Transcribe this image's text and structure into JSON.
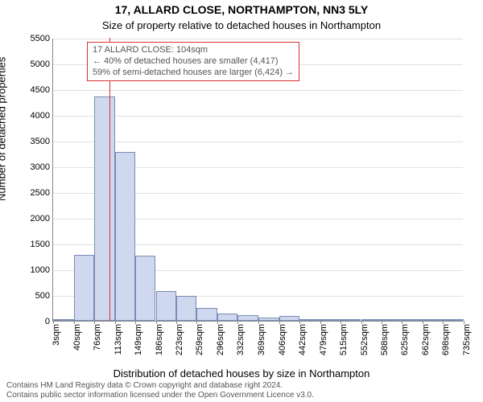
{
  "title": "17, ALLARD CLOSE, NORTHAMPTON, NN3 5LY",
  "subtitle": "Size of property relative to detached houses in Northampton",
  "ylabel": "Number of detached properties",
  "xlabel": "Distribution of detached houses by size in Northampton",
  "footnote_line1": "Contains HM Land Registry data © Crown copyright and database right 2024.",
  "footnote_line2": "Contains public sector information licensed under the Open Government Licence v3.0.",
  "chart": {
    "type": "histogram",
    "x_min": 3,
    "x_max": 735,
    "y_min": 0,
    "y_max": 5500,
    "y_tick_step": 500,
    "x_ticks": [
      3,
      40,
      76,
      113,
      149,
      186,
      223,
      259,
      296,
      332,
      369,
      406,
      442,
      479,
      515,
      552,
      588,
      625,
      662,
      698,
      735
    ],
    "x_tick_suffix": "sqm",
    "grid_color": "#e0e0e0",
    "bar_fill": "#cfd8ee",
    "bar_stroke": "#7a8bb5",
    "background_color": "#ffffff",
    "marker": {
      "x": 104,
      "color": "#d93030"
    },
    "bars": [
      {
        "x0": 3,
        "x1": 40,
        "count": 20
      },
      {
        "x0": 40,
        "x1": 76,
        "count": 1280
      },
      {
        "x0": 76,
        "x1": 113,
        "count": 4360
      },
      {
        "x0": 113,
        "x1": 149,
        "count": 3280
      },
      {
        "x0": 149,
        "x1": 186,
        "count": 1260
      },
      {
        "x0": 186,
        "x1": 223,
        "count": 580
      },
      {
        "x0": 223,
        "x1": 259,
        "count": 490
      },
      {
        "x0": 259,
        "x1": 296,
        "count": 250
      },
      {
        "x0": 296,
        "x1": 332,
        "count": 140
      },
      {
        "x0": 332,
        "x1": 369,
        "count": 110
      },
      {
        "x0": 369,
        "x1": 406,
        "count": 70
      },
      {
        "x0": 406,
        "x1": 442,
        "count": 90
      },
      {
        "x0": 442,
        "x1": 479,
        "count": 20
      },
      {
        "x0": 479,
        "x1": 515,
        "count": 10
      },
      {
        "x0": 515,
        "x1": 552,
        "count": 10
      },
      {
        "x0": 552,
        "x1": 588,
        "count": 5
      },
      {
        "x0": 588,
        "x1": 625,
        "count": 5
      },
      {
        "x0": 625,
        "x1": 662,
        "count": 5
      },
      {
        "x0": 662,
        "x1": 698,
        "count": 5
      },
      {
        "x0": 698,
        "x1": 735,
        "count": 5
      }
    ]
  },
  "callout": {
    "line1": "17 ALLARD CLOSE: 104sqm",
    "line2": "← 40% of detached houses are smaller (4,417)",
    "line3": "59% of semi-detached houses are larger (6,424) →",
    "border_color": "#d93030",
    "text_color": "#555555",
    "fontsize": 11
  },
  "fonts": {
    "title_size": 14,
    "subtitle_size": 13,
    "axis_label_size": 13,
    "tick_size": 11,
    "foot_size": 10
  }
}
